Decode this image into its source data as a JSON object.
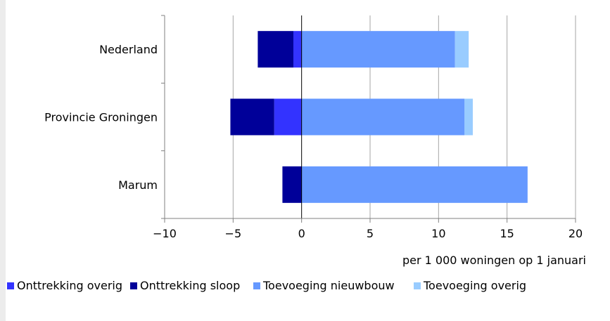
{
  "chart_data": {
    "type": "bar",
    "orientation": "horizontal",
    "stacked": true,
    "title": "",
    "xlabel": "per 1 000 woningen op 1 januari",
    "ylabel": "",
    "xlim": [
      -10,
      20
    ],
    "xticks": [
      -10,
      -5,
      0,
      5,
      10,
      15,
      20
    ],
    "grid": "vertical",
    "legend_position": "bottom",
    "categories": [
      "Nederland",
      "Provincie Groningen",
      "Marum"
    ],
    "series": [
      {
        "name": "Onttrekking overig",
        "color": "#3333ff",
        "values": [
          -0.6,
          -2.0,
          0.0
        ]
      },
      {
        "name": "Onttrekking sloop",
        "color": "#000099",
        "values": [
          -2.6,
          -3.2,
          -1.4
        ]
      },
      {
        "name": "Toevoeging nieuwbouw",
        "color": "#6699ff",
        "values": [
          11.2,
          11.9,
          16.5
        ]
      },
      {
        "name": "Toevoeging overig",
        "color": "#99ccff",
        "values": [
          1.0,
          0.6,
          0.0
        ]
      }
    ]
  }
}
